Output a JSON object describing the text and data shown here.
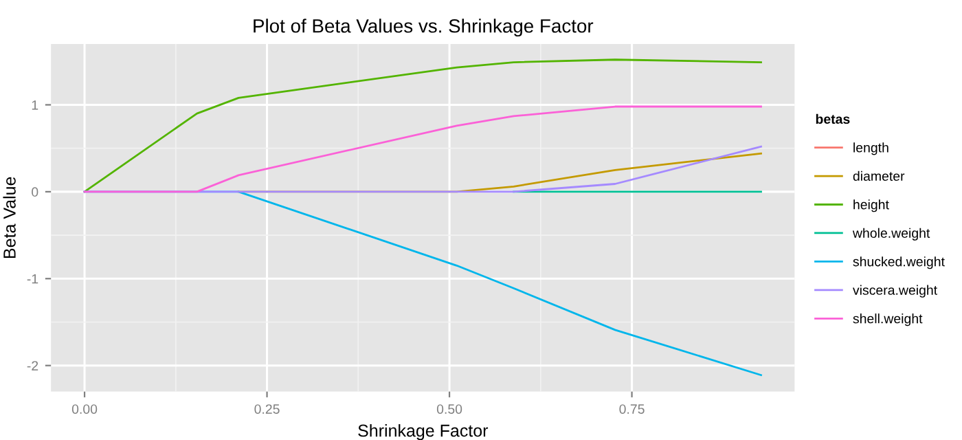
{
  "chart_data": {
    "type": "line",
    "title": "Plot of Beta Values vs. Shrinkage Factor",
    "xlabel": "Shrinkage Factor",
    "ylabel": "Beta Value",
    "legend_title": "betas",
    "x": [
      0,
      0.154,
      0.211,
      0.51,
      0.588,
      0.727,
      0.927
    ],
    "series": [
      {
        "name": "length",
        "color": "#f8766d",
        "values": [
          null,
          null,
          null,
          null,
          null,
          null,
          null
        ]
      },
      {
        "name": "diameter",
        "color": "#c49a00",
        "values": [
          null,
          null,
          0,
          0,
          0.06,
          0.25,
          0.44
        ]
      },
      {
        "name": "height",
        "color": "#53b400",
        "values": [
          0,
          0.9,
          1.08,
          1.43,
          1.49,
          1.52,
          1.49
        ]
      },
      {
        "name": "whole.weight",
        "color": "#00c094",
        "values": [
          null,
          null,
          null,
          null,
          0,
          0,
          0
        ]
      },
      {
        "name": "shucked.weight",
        "color": "#00b6eb",
        "values": [
          0,
          0,
          0,
          -0.85,
          -1.11,
          -1.59,
          -2.11
        ]
      },
      {
        "name": "viscera.weight",
        "color": "#a58aff",
        "values": [
          0,
          0,
          0,
          0,
          0,
          0.09,
          0.52
        ]
      },
      {
        "name": "shell.weight",
        "color": "#fb61d7",
        "values": [
          0,
          0,
          0.19,
          0.76,
          0.87,
          0.98,
          0.98
        ]
      }
    ],
    "xlim": [
      -0.046,
      0.973
    ],
    "ylim": [
      -2.3,
      1.7
    ],
    "xticks": [
      {
        "value": 0,
        "label": "0.00"
      },
      {
        "value": 0.25,
        "label": "0.25"
      },
      {
        "value": 0.5,
        "label": "0.50"
      },
      {
        "value": 0.75,
        "label": "0.75"
      }
    ],
    "yticks": [
      -2,
      -1,
      0,
      1
    ],
    "grid": true,
    "legend": "right"
  }
}
